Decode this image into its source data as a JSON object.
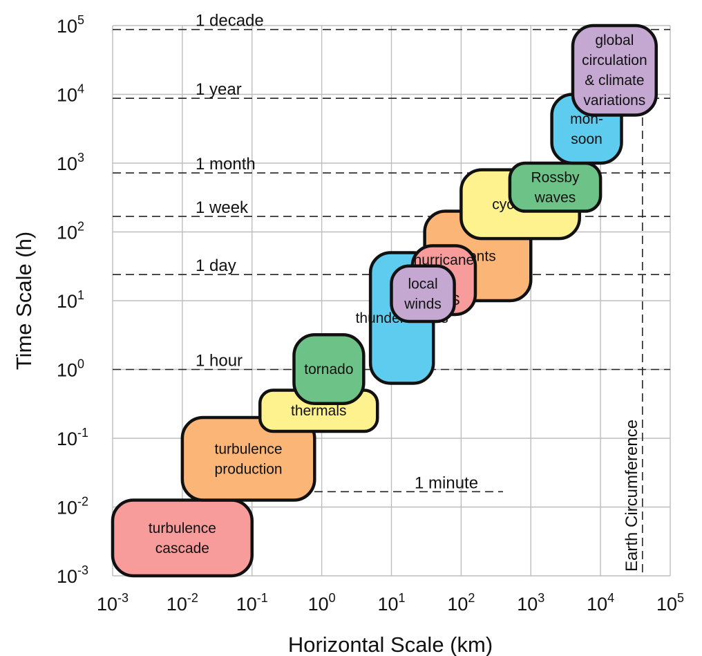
{
  "chart_data": {
    "type": "scatter",
    "xlabel": "Horizontal Scale (km)",
    "ylabel": "Time Scale (h)",
    "x_scale": "log",
    "y_scale": "log",
    "xlim": [
      0.001,
      100000
    ],
    "ylim": [
      0.001,
      100000
    ],
    "x_ticks": [
      {
        "base": "10",
        "exp": "-3"
      },
      {
        "base": "10",
        "exp": "-2"
      },
      {
        "base": "10",
        "exp": "-1"
      },
      {
        "base": "10",
        "exp": "0"
      },
      {
        "base": "10",
        "exp": "1"
      },
      {
        "base": "10",
        "exp": "2"
      },
      {
        "base": "10",
        "exp": "3"
      },
      {
        "base": "10",
        "exp": "4"
      },
      {
        "base": "10",
        "exp": "5"
      }
    ],
    "y_ticks": [
      {
        "base": "10",
        "exp": "-3"
      },
      {
        "base": "10",
        "exp": "-2"
      },
      {
        "base": "10",
        "exp": "-1"
      },
      {
        "base": "10",
        "exp": "0"
      },
      {
        "base": "10",
        "exp": "1"
      },
      {
        "base": "10",
        "exp": "2"
      },
      {
        "base": "10",
        "exp": "3"
      },
      {
        "base": "10",
        "exp": "4"
      },
      {
        "base": "10",
        "exp": "5"
      }
    ],
    "grid": true,
    "time_references": [
      {
        "label": "1 decade",
        "hours": 87600
      },
      {
        "label": "1 year",
        "hours": 8760
      },
      {
        "label": "1 month",
        "hours": 720
      },
      {
        "label": "1 week",
        "hours": 168
      },
      {
        "label": "1 day",
        "hours": 24
      },
      {
        "label": "1 hour",
        "hours": 1
      },
      {
        "label": "1 minute",
        "hours": 0.0167
      }
    ],
    "earth_circumference": {
      "label": "Earth Circumference",
      "km": 40000
    },
    "phenomena": [
      {
        "lines": [
          "turbulence",
          "cascade"
        ],
        "x_range": [
          0.001,
          0.1
        ],
        "y_range": [
          0.001,
          0.0126
        ],
        "color": "#F79B9B"
      },
      {
        "lines": [
          "turbulence",
          "production"
        ],
        "x_range": [
          0.01,
          0.79
        ],
        "y_range": [
          0.0126,
          0.2
        ],
        "color": "#FBB577"
      },
      {
        "lines": [
          "thermals"
        ],
        "x_range": [
          0.13,
          6.3
        ],
        "y_range": [
          0.126,
          0.5
        ],
        "color": "#FDF28E"
      },
      {
        "lines": [
          "tornado"
        ],
        "x_range": [
          0.4,
          4.0
        ],
        "y_range": [
          0.32,
          3.2
        ],
        "color": "#6DC287"
      },
      {
        "lines": [
          "thunderstorms"
        ],
        "x_range": [
          5.0,
          40.0
        ],
        "y_range": [
          0.63,
          50.0
        ],
        "color": "#5ECCEE"
      },
      {
        "lines": [
          "fronts"
        ],
        "x_range": [
          30.0,
          1000.0
        ],
        "y_range": [
          10.0,
          200.0
        ],
        "color": "#FBB577"
      },
      {
        "lines": [
          "cyclones"
        ],
        "x_range": [
          100.0,
          5000.0
        ],
        "y_range": [
          80.0,
          800.0
        ],
        "color": "#FDF28E"
      },
      {
        "lines": [
          "hurricane",
          "&",
          "MCS"
        ],
        "x_range": [
          20.0,
          160.0
        ],
        "y_range": [
          6.3,
          63.0
        ],
        "color": "#F79B9B"
      },
      {
        "lines": [
          "local",
          "winds"
        ],
        "x_range": [
          10.0,
          80.0
        ],
        "y_range": [
          5.0,
          32.0
        ],
        "color": "#C5A8D2"
      },
      {
        "lines": [
          "Rossby",
          "waves"
        ],
        "x_range": [
          500.0,
          10000.0
        ],
        "y_range": [
          200.0,
          1000.0
        ],
        "color": "#6DC287"
      },
      {
        "lines": [
          "mon-",
          "soon"
        ],
        "x_range": [
          2000.0,
          20000.0
        ],
        "y_range": [
          1000.0,
          10000.0
        ],
        "color": "#5ECCEE"
      },
      {
        "lines": [
          "global",
          "circulation",
          "& climate",
          "variations"
        ],
        "x_range": [
          4000.0,
          63000.0
        ],
        "y_range": [
          5000.0,
          100000.0
        ],
        "color": "#C5A8D2"
      }
    ]
  }
}
